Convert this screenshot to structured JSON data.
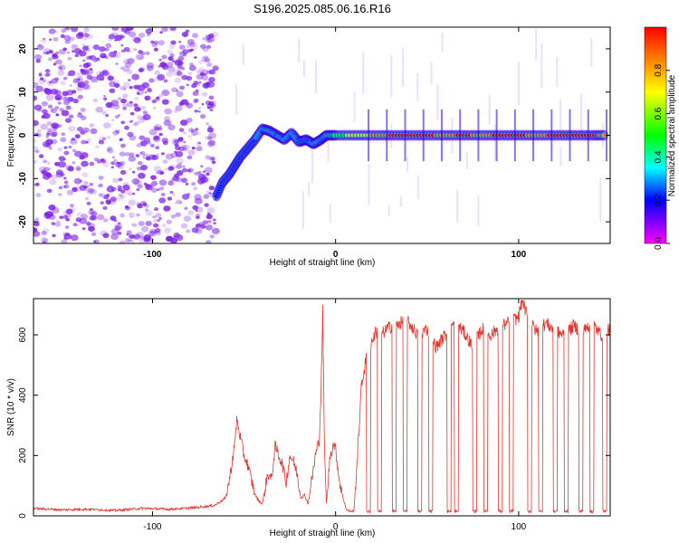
{
  "chart_data": [
    {
      "type": "heatmap",
      "title": "S196.2025.085.06.16.R16",
      "xlabel": "Height of straight line (km)",
      "ylabel": "Frequency (Hz)",
      "xlim": [
        -165,
        150
      ],
      "ylim": [
        -25,
        25
      ],
      "x_ticks": [
        -100,
        0,
        100
      ],
      "y_ticks": [
        -20,
        -10,
        0,
        10,
        20
      ],
      "colorbar": {
        "label": "Normalized spectral amplitude",
        "range": [
          0,
          1
        ],
        "ticks": [
          0.0,
          0.2,
          0.4,
          0.6,
          0.8
        ],
        "colormap": [
          "#ff00ff",
          "#7d00ff",
          "#0000ff",
          "#00ffff",
          "#00ff00",
          "#ffff00",
          "#ff8000",
          "#ff0000"
        ]
      },
      "noise_region": {
        "x": [
          -165,
          -65
        ],
        "y": [
          -25,
          25
        ],
        "amplitude": 0.1,
        "color": "#7d22e6"
      },
      "signal_track": {
        "x": [
          -65,
          -62,
          -58,
          -55,
          -52,
          -48,
          -44,
          -40,
          -36,
          -32,
          -28,
          -24,
          -20,
          -16,
          -12,
          -8,
          -5,
          0,
          10,
          20,
          30,
          40,
          50,
          60,
          70,
          80,
          90,
          100,
          110,
          120,
          130,
          140,
          148
        ],
        "freq": [
          -14,
          -11,
          -9,
          -7,
          -5,
          -3,
          -1,
          1.5,
          1,
          0,
          -1,
          0.5,
          -1.5,
          -1,
          -2,
          -1,
          0,
          0,
          0,
          0,
          0,
          0,
          0,
          0,
          0,
          0,
          0,
          0,
          0,
          0,
          0,
          0,
          0
        ],
        "amplitude": [
          0.3,
          0.3,
          0.35,
          0.35,
          0.3,
          0.3,
          0.35,
          0.45,
          0.4,
          0.35,
          0.4,
          0.45,
          0.35,
          0.3,
          0.4,
          0.45,
          0.5,
          0.55,
          0.7,
          0.8,
          0.95,
          0.95,
          0.95,
          0.9,
          0.95,
          0.9,
          0.95,
          0.95,
          0.9,
          0.95,
          0.95,
          0.95,
          0.9
        ]
      }
    },
    {
      "type": "line",
      "xlabel": "Height of straight line (km)",
      "ylabel": "SNR (10 * v/v)",
      "xlim": [
        -165,
        150
      ],
      "ylim": [
        0,
        720
      ],
      "x_ticks": [
        -100,
        0,
        100
      ],
      "y_ticks": [
        0,
        200,
        400,
        600
      ],
      "color": "#e8322c",
      "series": [
        {
          "x": [
            -165,
            -150,
            -135,
            -120,
            -105,
            -90,
            -75,
            -66,
            -60,
            -58,
            -55,
            -54,
            -52,
            -50,
            -48,
            -46,
            -44,
            -42,
            -40,
            -37,
            -35,
            -33,
            -31,
            -29,
            -27,
            -25,
            -23,
            -21,
            -19,
            -17,
            -15,
            -13,
            -11,
            -9,
            -8,
            -7,
            -6,
            -5,
            -3,
            -1,
            0,
            2,
            4,
            6,
            8,
            10,
            12,
            14,
            16,
            18,
            20,
            22,
            25,
            28,
            31,
            35,
            40,
            45,
            50,
            55,
            60,
            65,
            70,
            75,
            80,
            85,
            90,
            95,
            100,
            102,
            105,
            110,
            115,
            120,
            125,
            130,
            135,
            140,
            145,
            150
          ],
          "y": [
            25,
            20,
            22,
            18,
            25,
            22,
            28,
            35,
            60,
            120,
            240,
            320,
            260,
            200,
            170,
            120,
            70,
            50,
            40,
            140,
            120,
            230,
            200,
            170,
            110,
            200,
            180,
            140,
            60,
            70,
            40,
            120,
            200,
            250,
            400,
            680,
            200,
            40,
            200,
            240,
            220,
            120,
            60,
            20,
            15,
            15,
            200,
            420,
            500,
            550,
            580,
            610,
            600,
            620,
            630,
            640,
            640,
            600,
            620,
            560,
            600,
            640,
            610,
            560,
            620,
            600,
            630,
            640,
            660,
            720,
            650,
            610,
            640,
            610,
            600,
            630,
            610,
            640,
            600,
            620
          ],
          "dropouts": [
            18,
            24,
            32,
            38,
            46,
            52,
            62,
            66,
            76,
            82,
            90,
            96,
            106,
            112,
            120,
            126,
            134,
            140,
            147
          ]
        }
      ]
    }
  ]
}
